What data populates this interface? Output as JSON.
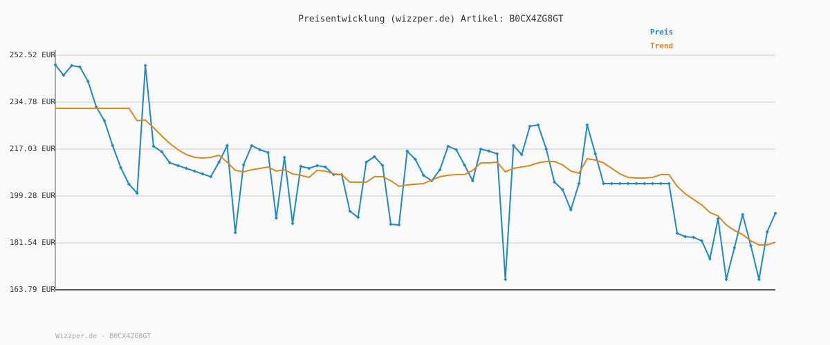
{
  "chart_data": {
    "type": "line",
    "title": "Preisentwicklung (wizzper.de) Artikel: B0CX4ZG8GT",
    "footer": "Wizzper.de - B0CX4ZG8GT",
    "ylim": [
      163.79,
      252.52
    ],
    "yticks": [
      {
        "value": 163.79,
        "label": "163.79 EUR"
      },
      {
        "value": 181.54,
        "label": "181.54 EUR"
      },
      {
        "value": 199.28,
        "label": "199.28 EUR"
      },
      {
        "value": 217.03,
        "label": "217.03 EUR"
      },
      {
        "value": 234.78,
        "label": "234.78 EUR"
      },
      {
        "value": 252.52,
        "label": "252.52 EUR"
      }
    ],
    "grid": true,
    "legend": "top-right",
    "series": [
      {
        "name": "Preis",
        "color": "#1b88c8",
        "markers": true,
        "values": [
          248.87,
          244.95,
          248.61,
          248.08,
          242.6,
          232.95,
          227.73,
          218.33,
          209.98,
          203.72,
          200.33,
          248.61,
          218.07,
          215.99,
          211.81,
          210.77,
          209.72,
          208.68,
          207.63,
          206.59,
          212.07,
          218.33,
          185.45,
          211.03,
          218.33,
          216.77,
          215.72,
          190.93,
          213.9,
          188.85,
          210.51,
          209.72,
          210.77,
          210.24,
          207.37,
          207.37,
          193.54,
          191.19,
          212.07,
          214.16,
          210.77,
          188.58,
          188.32,
          216.25,
          213.11,
          207.11,
          205.03,
          209.2,
          218.07,
          216.77,
          211.03,
          205.03,
          217.03,
          216.25,
          215.2,
          167.71,
          218.33,
          214.94,
          225.64,
          226.16,
          217.03,
          204.5,
          201.63,
          194.06,
          203.98,
          226.16,
          215.2,
          203.98,
          203.98,
          203.98,
          203.98,
          203.98,
          203.98,
          203.98,
          203.98,
          203.98,
          185.19,
          183.89,
          183.63,
          182.32,
          175.54,
          190.67,
          167.71,
          179.71,
          192.24,
          180.49,
          167.71,
          185.71,
          192.76
        ]
      },
      {
        "name": "Trend",
        "color": "#e0861a",
        "markers": false,
        "values": [
          232.43,
          232.43,
          232.43,
          232.43,
          232.43,
          232.43,
          232.43,
          232.43,
          232.43,
          232.43,
          227.73,
          227.99,
          225.12,
          221.99,
          219.12,
          216.77,
          214.94,
          213.9,
          213.64,
          213.9,
          214.68,
          212.07,
          208.94,
          208.42,
          209.2,
          209.72,
          210.24,
          208.68,
          209.2,
          207.63,
          207.11,
          206.33,
          208.94,
          208.68,
          207.63,
          207.37,
          204.5,
          204.5,
          204.5,
          206.59,
          206.59,
          205.03,
          202.94,
          203.46,
          203.72,
          203.98,
          205.29,
          206.59,
          207.11,
          207.37,
          207.37,
          208.94,
          211.81,
          211.81,
          212.07,
          208.42,
          209.72,
          210.24,
          210.77,
          211.81,
          212.33,
          212.33,
          211.03,
          208.68,
          207.9,
          213.38,
          212.85,
          211.81,
          209.72,
          207.63,
          206.33,
          206.07,
          206.07,
          206.33,
          207.37,
          207.37,
          202.94,
          200.07,
          197.98,
          195.89,
          193.02,
          191.72,
          188.32,
          186.24,
          184.67,
          182.32,
          180.76,
          180.76,
          181.8
        ]
      }
    ]
  }
}
